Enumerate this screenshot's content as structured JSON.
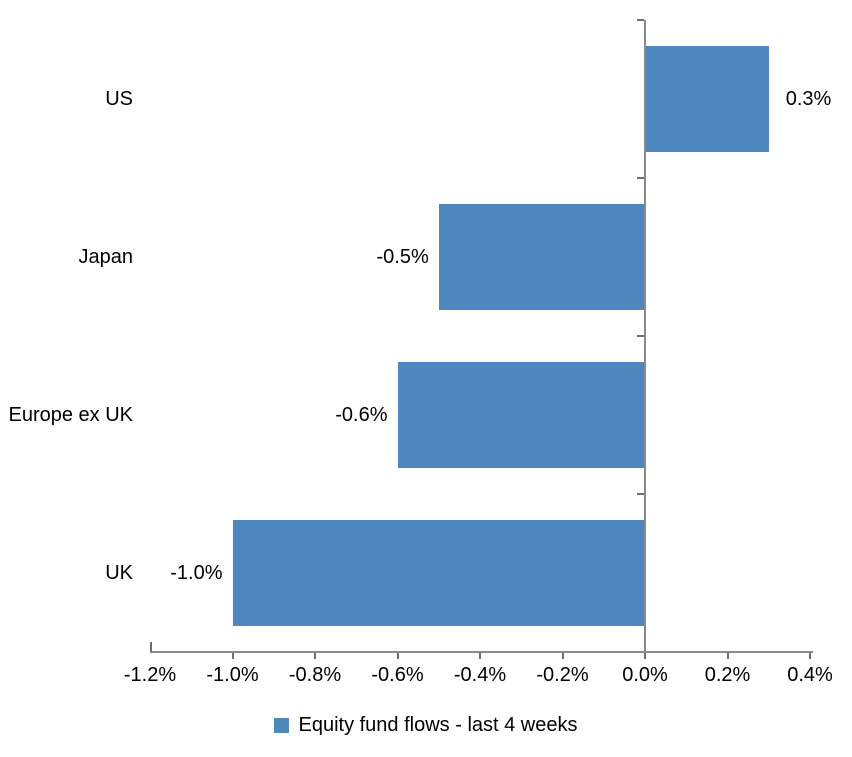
{
  "chart_data": {
    "type": "bar",
    "orientation": "horizontal",
    "title": "",
    "categories": [
      "US",
      "Japan",
      "Europe ex UK",
      "UK"
    ],
    "values": [
      0.3,
      -0.5,
      -0.6,
      -1.0
    ],
    "value_labels": [
      "0.3%",
      "-0.5%",
      "-0.6%",
      "-1.0%"
    ],
    "series": [
      {
        "name": "Equity fund flows - last 4 weeks",
        "values": [
          0.3,
          -0.5,
          -0.6,
          -1.0
        ]
      }
    ],
    "x_axis": {
      "unit": "%",
      "min": -1.2,
      "max": 0.4,
      "tick_values": [
        -1.2,
        -1.0,
        -0.8,
        -0.6,
        -0.4,
        -0.2,
        0.0,
        0.2,
        0.4
      ],
      "tick_labels": [
        "-1.2%",
        "-1.0%",
        "-0.8%",
        "-0.6%",
        "-0.4%",
        "-0.2%",
        "0.0%",
        "0.2%",
        "0.4%"
      ]
    },
    "grid": false,
    "legend": {
      "position": "bottom",
      "entries": [
        {
          "label": "Equity fund flows - last 4 weeks",
          "color": "#4E86BE"
        }
      ]
    },
    "colors": {
      "bar": "#4E86BE",
      "axis": "#8A8A8A",
      "tick": "#6E6E6E",
      "text": "#000000",
      "background": "#FFFFFF"
    }
  }
}
